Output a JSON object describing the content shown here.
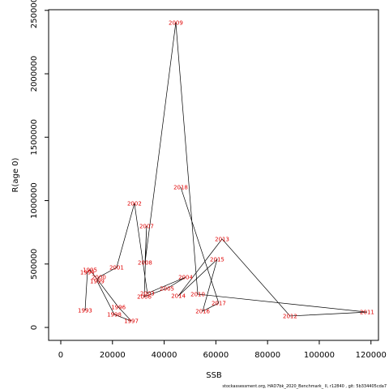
{
  "chart_data": {
    "type": "connected_scatter",
    "xlabel": "SSB",
    "ylabel": "R(age 0)",
    "footer": "stockassessment.org, HAD7bk_2020_Benchmark_ II, r12840 , git: 5b334405cda7",
    "labels": [
      "1993",
      "1994",
      "1995",
      "1996",
      "1997",
      "1998",
      "1999",
      "2000",
      "2001",
      "2002",
      "2003",
      "2004",
      "2005",
      "2006",
      "2007",
      "2008",
      "2009",
      "2010",
      "2011",
      "2012",
      "2013",
      "2014",
      "2015",
      "2016",
      "2017",
      "2018"
    ],
    "x": [
      9400,
      10300,
      11300,
      22300,
      27300,
      20700,
      14100,
      14700,
      21600,
      28500,
      33500,
      48300,
      41100,
      32300,
      33200,
      32600,
      44500,
      53000,
      118500,
      88700,
      62400,
      45500,
      60500,
      54900,
      61100,
      46400
    ],
    "y": [
      134000,
      435000,
      454000,
      160000,
      51000,
      102000,
      364000,
      396000,
      473000,
      978000,
      269000,
      396000,
      307000,
      243000,
      799000,
      512000,
      2404000,
      262000,
      121000,
      90000,
      697000,
      249000,
      537000,
      128000,
      192000,
      1106000
    ],
    "color": "#e00000",
    "line_color": "#000000",
    "xlim": [
      -4700,
      122900
    ],
    "ylim": [
      -102000,
      2505000
    ],
    "xticks": [
      0,
      20000,
      40000,
      60000,
      80000,
      100000,
      120000
    ],
    "yticks": [
      0,
      500000,
      1000000,
      1500000,
      2000000,
      2500000
    ]
  }
}
